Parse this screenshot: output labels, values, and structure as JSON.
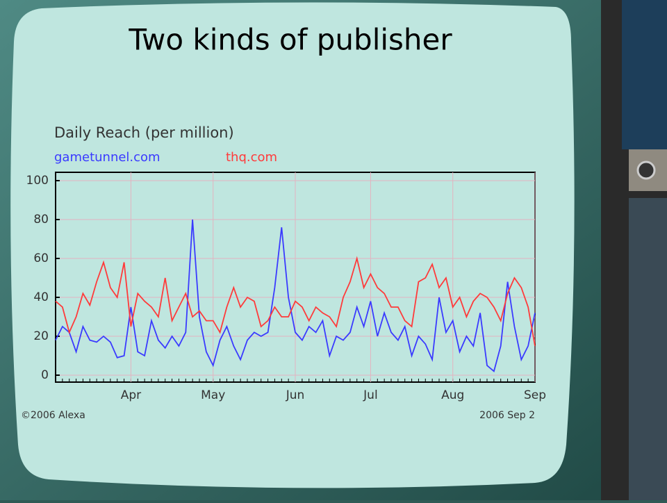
{
  "title": "Two kinds of publisher",
  "chart_data": {
    "type": "line",
    "title": "Daily Reach (per million)",
    "categories": [
      null,
      null,
      null,
      null,
      null,
      null,
      null,
      null,
      null,
      null,
      null,
      "Apr",
      null,
      null,
      null,
      null,
      null,
      null,
      null,
      null,
      null,
      null,
      null,
      "May",
      null,
      null,
      null,
      null,
      null,
      null,
      null,
      null,
      null,
      null,
      null,
      "Jun",
      null,
      null,
      null,
      null,
      null,
      null,
      null,
      null,
      null,
      null,
      "Jul",
      null,
      null,
      null,
      null,
      null,
      null,
      null,
      null,
      null,
      null,
      null,
      "Aug",
      null,
      null,
      null,
      null,
      null,
      null,
      null,
      null,
      null,
      null,
      null,
      "Sep"
    ],
    "series": [
      {
        "name": "gametunnel.com",
        "color": "#3a3aff",
        "values": [
          18,
          25,
          22,
          12,
          25,
          18,
          17,
          20,
          17,
          9,
          10,
          35,
          12,
          10,
          28,
          18,
          14,
          20,
          15,
          22,
          80,
          30,
          12,
          5,
          18,
          25,
          15,
          8,
          18,
          22,
          20,
          22,
          45,
          76,
          40,
          22,
          18,
          25,
          22,
          28,
          10,
          20,
          18,
          22,
          35,
          25,
          38,
          20,
          32,
          22,
          18,
          25,
          10,
          20,
          16,
          8,
          40,
          22,
          28,
          12,
          20,
          15,
          32,
          5,
          2,
          15,
          48,
          25,
          8,
          15,
          32
        ]
      },
      {
        "name": "thq.com",
        "color": "#ff3a3a",
        "values": [
          38,
          35,
          22,
          30,
          42,
          36,
          48,
          58,
          45,
          40,
          58,
          25,
          42,
          38,
          35,
          30,
          50,
          28,
          35,
          42,
          30,
          33,
          28,
          28,
          22,
          35,
          45,
          35,
          40,
          38,
          25,
          28,
          35,
          30,
          30,
          38,
          35,
          28,
          35,
          32,
          30,
          25,
          40,
          48,
          60,
          45,
          52,
          45,
          42,
          35,
          35,
          28,
          25,
          48,
          50,
          57,
          45,
          50,
          35,
          40,
          30,
          38,
          42,
          40,
          35,
          28,
          42,
          50,
          45,
          35,
          15
        ]
      }
    ],
    "ylim": [
      0,
      100
    ],
    "yticks": [
      0,
      20,
      40,
      60,
      80,
      100
    ],
    "grid": true,
    "source": "©2006 Alexa",
    "date_note": "2006 Sep 2"
  }
}
